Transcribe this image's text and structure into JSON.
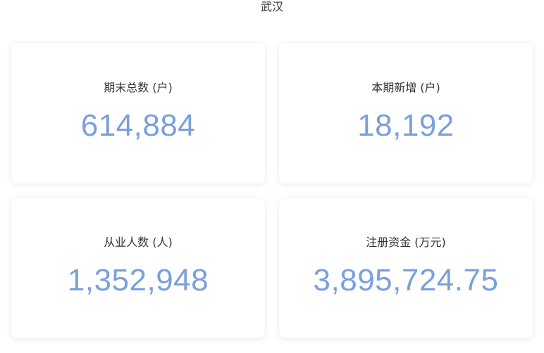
{
  "region": "武汉",
  "accent_color": "#7aa0dc",
  "stats": [
    {
      "label": "期末总数 (户)",
      "value": "614,884"
    },
    {
      "label": "本期新增 (户)",
      "value": "18,192"
    },
    {
      "label": "从业人数 (人)",
      "value": "1,352,948"
    },
    {
      "label": "注册资金 (万元)",
      "value": "3,895,724.75"
    }
  ]
}
